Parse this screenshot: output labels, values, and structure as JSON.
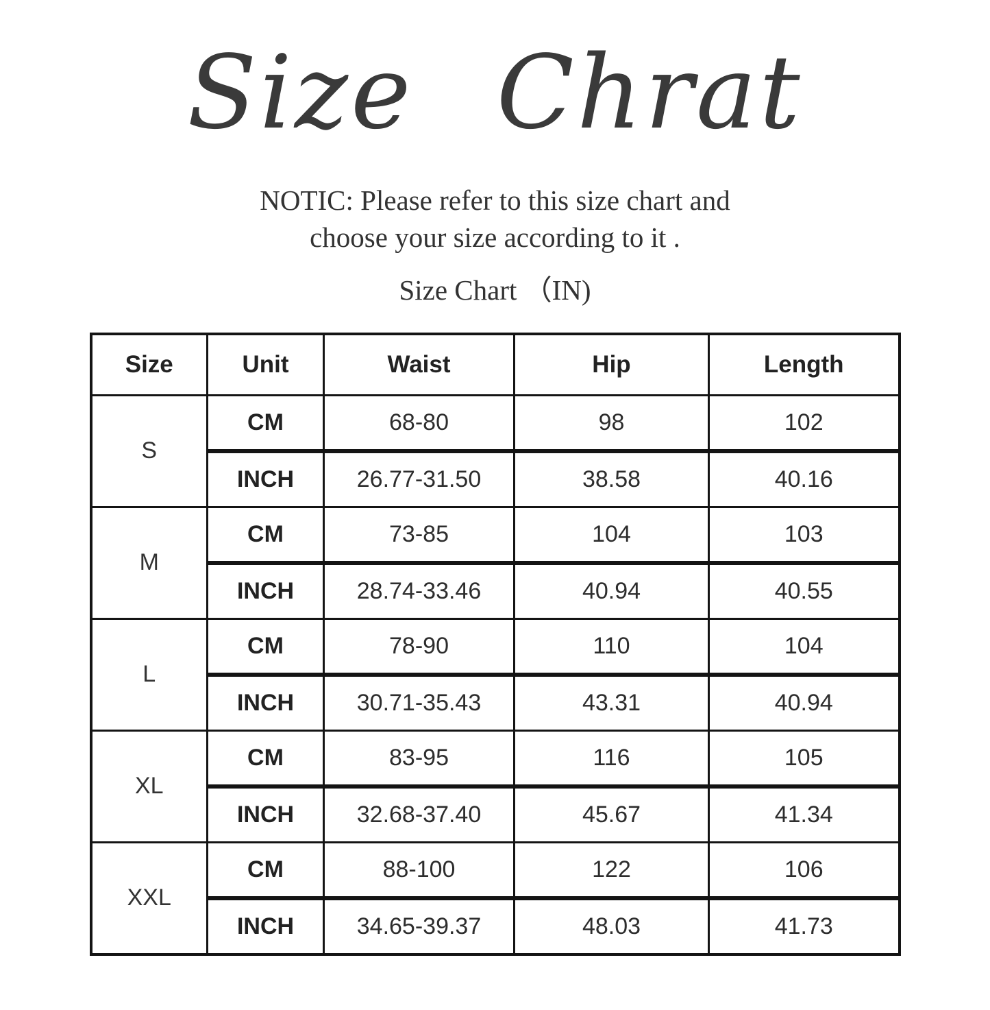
{
  "page": {
    "title": "Size Chrat",
    "notice_line1": "NOTIC: Please refer to this size chart and",
    "notice_line2": "choose your size according to it .",
    "subtitle": "Size Chart （IN)"
  },
  "table": {
    "headers": [
      "Size",
      "Unit",
      "Waist",
      "Hip",
      "Length"
    ],
    "rows": [
      {
        "size": "S",
        "cm": {
          "unit": "CM",
          "waist": "68-80",
          "hip": "98",
          "length": "102"
        },
        "inch": {
          "unit": "INCH",
          "waist": "26.77-31.50",
          "hip": "38.58",
          "length": "40.16"
        }
      },
      {
        "size": "M",
        "cm": {
          "unit": "CM",
          "waist": "73-85",
          "hip": "104",
          "length": "103"
        },
        "inch": {
          "unit": "INCH",
          "waist": "28.74-33.46",
          "hip": "40.94",
          "length": "40.55"
        }
      },
      {
        "size": "L",
        "cm": {
          "unit": "CM",
          "waist": "78-90",
          "hip": "110",
          "length": "104"
        },
        "inch": {
          "unit": "INCH",
          "waist": "30.71-35.43",
          "hip": "43.31",
          "length": "40.94"
        }
      },
      {
        "size": "XL",
        "cm": {
          "unit": "CM",
          "waist": "83-95",
          "hip": "116",
          "length": "105"
        },
        "inch": {
          "unit": "INCH",
          "waist": "32.68-37.40",
          "hip": "45.67",
          "length": "41.34"
        }
      },
      {
        "size": "XXL",
        "cm": {
          "unit": "CM",
          "waist": "88-100",
          "hip": "122",
          "length": "106"
        },
        "inch": {
          "unit": "INCH",
          "waist": "34.65-39.37",
          "hip": "48.03",
          "length": "41.73"
        }
      }
    ]
  },
  "colors": {
    "background": "#ffffff",
    "text": "#2d2d2d",
    "title_text": "#3a3a3a",
    "table_border": "#141414"
  }
}
